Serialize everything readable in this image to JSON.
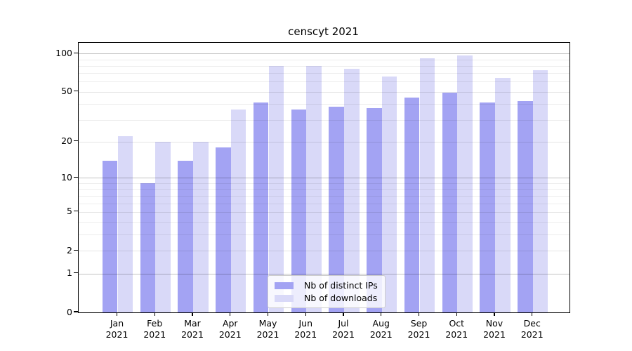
{
  "chart_data": {
    "type": "bar",
    "title": "censcyt 2021",
    "categories": [
      "Jan\n2021",
      "Feb\n2021",
      "Mar\n2021",
      "Apr\n2021",
      "May\n2021",
      "Jun\n2021",
      "Jul\n2021",
      "Aug\n2021",
      "Sep\n2021",
      "Oct\n2021",
      "Nov\n2021",
      "Dec\n2021"
    ],
    "series": [
      {
        "name": "Nb of distinct IPs",
        "color": "#a3a3f3",
        "values": [
          14,
          9,
          14,
          18,
          41,
          36,
          38,
          37,
          45,
          49,
          41,
          42
        ]
      },
      {
        "name": "Nb of downloads",
        "color": "#d9d9f8",
        "values": [
          22,
          20,
          20,
          36,
          80,
          80,
          76,
          66,
          92,
          97,
          64,
          74
        ]
      }
    ],
    "yscale": "log1p",
    "ylim": [
      0,
      120
    ],
    "ytick_labels": [
      "100",
      "50",
      "20",
      "10",
      "5",
      "2",
      "1",
      "0"
    ],
    "yticks": [
      100,
      50,
      20,
      10,
      5,
      2,
      1,
      0
    ],
    "major_gridlines": [
      100,
      10,
      1
    ],
    "minor_gridlines": [
      90,
      80,
      70,
      60,
      40,
      30,
      9,
      8,
      7,
      6,
      4,
      3
    ],
    "grid": true,
    "legend_position": "lower center",
    "legend_items": [
      {
        "label": "Nb of distinct IPs",
        "color": "#a3a3f3"
      },
      {
        "label": "Nb of downloads",
        "color": "#d9d9f8"
      }
    ]
  }
}
